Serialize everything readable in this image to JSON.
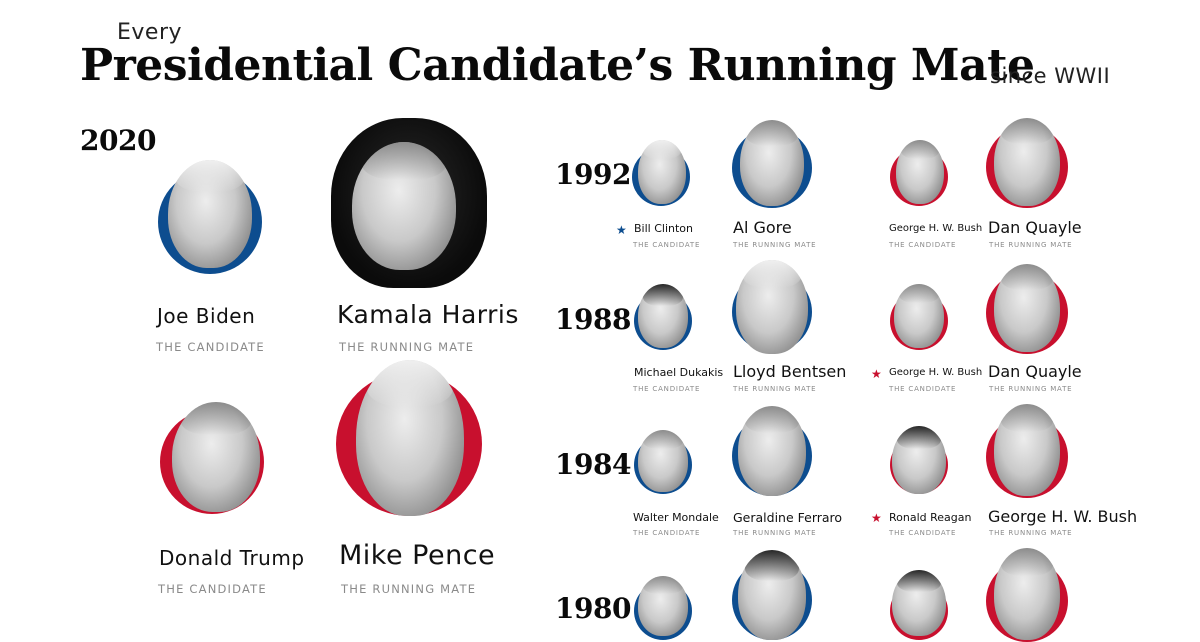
{
  "header": {
    "every": "Every",
    "main": "Presidential Candidate’s Running Mate",
    "since": "since WWII"
  },
  "colors": {
    "democrat": "#0d4d8f",
    "republican": "#c8102e"
  },
  "winner_marker_icon": "star-icon",
  "role_labels": {
    "candidate": "THE CANDIDATE",
    "running_mate": "THE RUNNING MATE"
  },
  "elections": [
    {
      "year": "2020",
      "democrat": {
        "candidate": "Joe Biden",
        "running_mate": "Kamala Harris",
        "winner": false
      },
      "republican": {
        "candidate": "Donald Trump",
        "running_mate": "Mike Pence",
        "winner": false
      }
    },
    {
      "year": "1992",
      "democrat": {
        "candidate": "Bill Clinton",
        "running_mate": "Al Gore",
        "winner": true
      },
      "republican": {
        "candidate": "George H. W. Bush",
        "running_mate": "Dan Quayle",
        "winner": false
      }
    },
    {
      "year": "1988",
      "democrat": {
        "candidate": "Michael Dukakis",
        "running_mate": "Lloyd Bentsen",
        "winner": false
      },
      "republican": {
        "candidate": "George H. W. Bush",
        "running_mate": "Dan Quayle",
        "winner": true
      }
    },
    {
      "year": "1984",
      "democrat": {
        "candidate": "Walter Mondale",
        "running_mate": "Geraldine Ferraro",
        "winner": false
      },
      "republican": {
        "candidate": "Ronald Reagan",
        "running_mate": "George H. W. Bush",
        "winner": true
      }
    },
    {
      "year": "1980"
    }
  ]
}
